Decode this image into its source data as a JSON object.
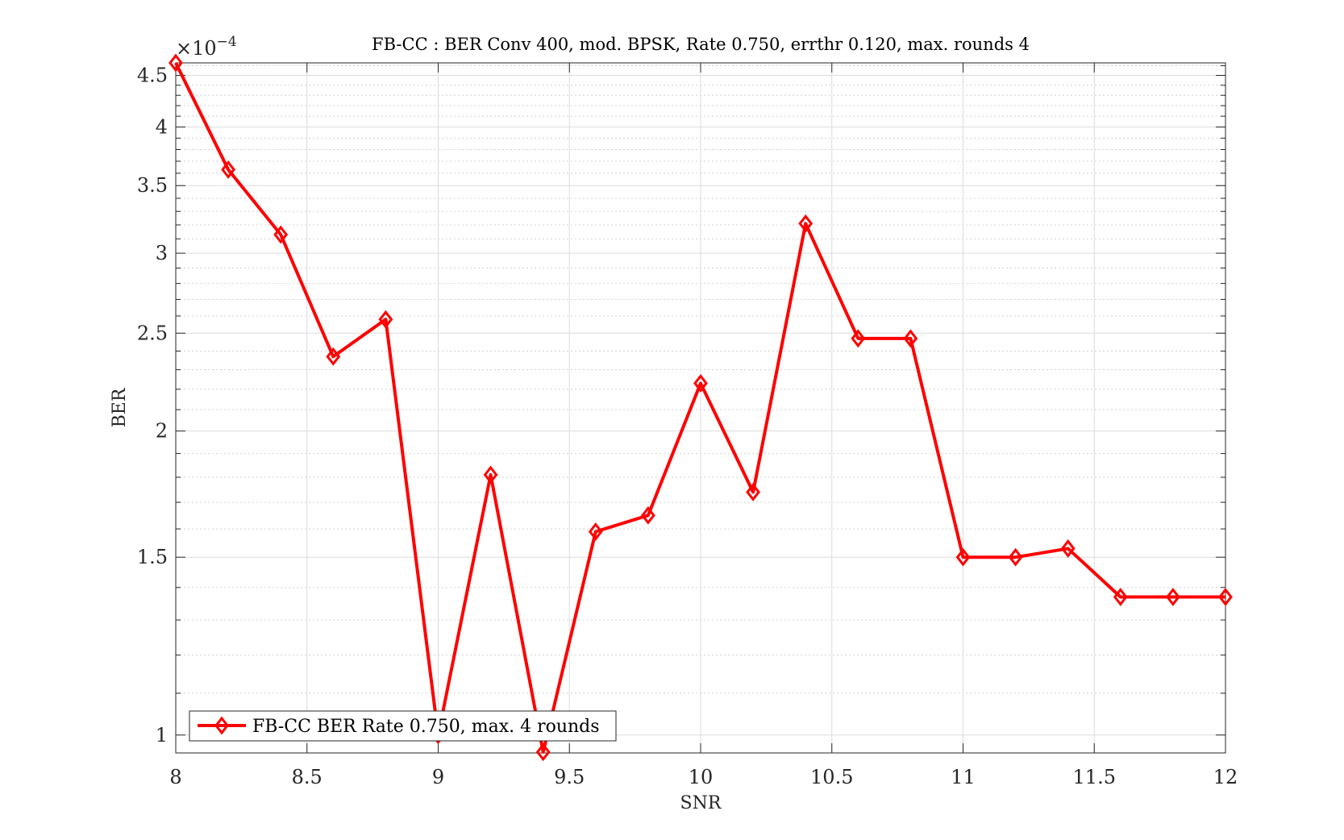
{
  "chart_data": {
    "type": "line",
    "title": "FB-CC : BER Conv 400, mod. BPSK, Rate 0.750, errthr 0.120, max. rounds 4",
    "xlabel": "SNR",
    "ylabel": "BER",
    "y_scale": "log",
    "y_exponent_label": "×10",
    "y_exponent_power": "−4",
    "xlim": [
      8,
      12
    ],
    "ylim": [
      9.6e-05,
      0.000463
    ],
    "x_ticks": [
      8,
      8.5,
      9,
      9.5,
      10,
      10.5,
      11,
      11.5,
      12
    ],
    "x_tick_labels": [
      "8",
      "8.5",
      "9",
      "9.5",
      "10",
      "10.5",
      "11",
      "11.5",
      "12"
    ],
    "y_ticks": [
      0.0001,
      0.00015,
      0.0002,
      0.00025,
      0.0003,
      0.00035,
      0.0004,
      0.00045
    ],
    "y_tick_labels": [
      "1",
      "1.5",
      "2",
      "2.5",
      "3",
      "3.5",
      "4",
      "4.5"
    ],
    "grid": true,
    "legend_position": "bottom-left",
    "series": [
      {
        "name": "FB-CC BER Rate 0.750, max. 4 rounds",
        "color": "#ff0000",
        "marker": "diamond",
        "x": [
          8,
          8.2,
          8.4,
          8.6,
          8.8,
          9,
          9.2,
          9.4,
          9.6,
          9.8,
          10,
          10.2,
          10.4,
          10.6,
          10.8,
          11,
          11.2,
          11.4,
          11.6,
          11.8,
          12
        ],
        "y": [
          0.000463,
          0.000363,
          0.000313,
          0.000237,
          0.000258,
          0.0001,
          0.000181,
          9.62e-05,
          0.000159,
          0.000165,
          0.000223,
          0.000174,
          0.000321,
          0.000247,
          0.000247,
          0.00015,
          0.00015,
          0.000153,
          0.000137,
          0.000137,
          0.000137
        ]
      }
    ]
  }
}
